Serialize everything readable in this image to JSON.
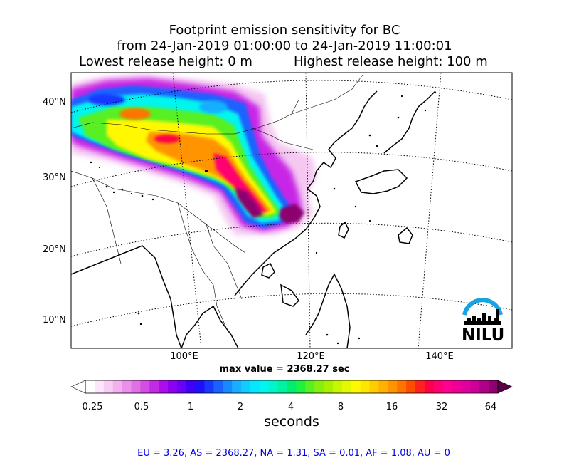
{
  "title": {
    "line1": "Footprint emission sensitivity for BC",
    "line2": "from 24-Jan-2019 01:00:00 to 24-Jan-2019 11:00:01",
    "lowest": "Lowest release height: 0 m",
    "highest": "Highest release height: 100 m"
  },
  "map": {
    "lat_labels": [
      "40°N",
      "30°N",
      "20°N",
      "10°N"
    ],
    "lon_labels": [
      "100°E",
      "120°E",
      "140°E"
    ],
    "extent": {
      "lon_min": 83,
      "lon_max": 152,
      "lat_min": 6,
      "lat_max": 44
    },
    "logo": {
      "text": "NILU",
      "arc_color": "#19a3e0"
    }
  },
  "max_value": "max value = 2368.27 sec",
  "colorbar": {
    "ticks": [
      "0.25",
      "0.5",
      "1",
      "2",
      "4",
      "8",
      "16",
      "32",
      "64"
    ],
    "label": "seconds",
    "colors": [
      "#ffffff",
      "#fde6fb",
      "#f8cdf5",
      "#f2b0ef",
      "#eb90ea",
      "#e070e6",
      "#d34ee2",
      "#c22ae6",
      "#ad0ded",
      "#8d00f2",
      "#6a00f5",
      "#4000f8",
      "#1e10fa",
      "#1838ff",
      "#1a62ff",
      "#1a88ff",
      "#19aeff",
      "#12ccff",
      "#05e6ff",
      "#00f5ee",
      "#00f5c8",
      "#00f2a0",
      "#00ee70",
      "#20f040",
      "#58f020",
      "#85f010",
      "#a8f000",
      "#c8f500",
      "#e6f800",
      "#fff800",
      "#ffe600",
      "#ffcc00",
      "#ffb000",
      "#ff9400",
      "#ff7400",
      "#ff4c00",
      "#ff2020",
      "#ff0048",
      "#ff0070",
      "#ff0090",
      "#ee0098",
      "#e000a0",
      "#cc0098",
      "#b00088",
      "#8c0070"
    ],
    "left_color": "#ffffff",
    "right_color": "#5c0048"
  },
  "summary": "EU = 3.26,  AS = 2368.27,  NA = 1.31,  SA = 0.01,  AF = 1.08,  AU = 0"
}
